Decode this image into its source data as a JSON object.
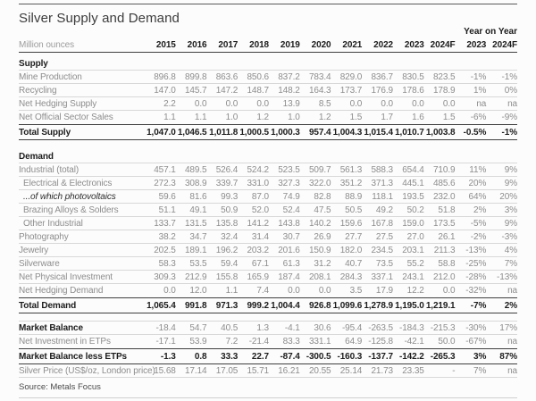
{
  "page": {
    "title": "Silver Supply and Demand",
    "unit_label": "Million ounces",
    "yoy_label": "Year on Year",
    "source": "Source: Metals Focus"
  },
  "table": {
    "year_columns": [
      "2015",
      "2016",
      "2017",
      "2018",
      "2019",
      "2020",
      "2021",
      "2022",
      "2023",
      "2024F"
    ],
    "yoy_columns": [
      "2023",
      "2024F"
    ],
    "rows": [
      {
        "style": "section",
        "label": "Supply",
        "values": []
      },
      {
        "style": "regular",
        "label": "Mine Production",
        "values": [
          "896.8",
          "899.8",
          "863.6",
          "850.6",
          "837.2",
          "783.4",
          "829.0",
          "836.7",
          "830.5",
          "823.5",
          "-1%",
          "-1%"
        ]
      },
      {
        "style": "regular",
        "label": "Recycling",
        "values": [
          "147.0",
          "145.7",
          "147.2",
          "148.7",
          "148.2",
          "164.3",
          "173.7",
          "176.9",
          "178.6",
          "178.9",
          "1%",
          "0%"
        ]
      },
      {
        "style": "regular",
        "label": "Net Hedging Supply",
        "values": [
          "2.2",
          "0.0",
          "0.0",
          "0.0",
          "13.9",
          "8.5",
          "0.0",
          "0.0",
          "0.0",
          "0.0",
          "na",
          "na"
        ]
      },
      {
        "style": "regular",
        "label": "Net Official Sector Sales",
        "values": [
          "1.1",
          "1.1",
          "1.0",
          "1.2",
          "1.0",
          "1.2",
          "1.5",
          "1.7",
          "1.6",
          "1.5",
          "-6%",
          "-9%"
        ]
      },
      {
        "style": "total",
        "label": "Total Supply",
        "values": [
          "1,047.0",
          "1,046.5",
          "1,011.8",
          "1,000.5",
          "1,000.3",
          "957.4",
          "1,004.3",
          "1,015.4",
          "1,010.7",
          "1,003.8",
          "-0.5%",
          "-1%"
        ]
      },
      {
        "style": "gap",
        "label": "",
        "values": []
      },
      {
        "style": "section",
        "label": "Demand",
        "values": []
      },
      {
        "style": "regular",
        "label": "Industrial (total)",
        "values": [
          "457.1",
          "489.5",
          "526.4",
          "524.2",
          "523.5",
          "509.7",
          "561.3",
          "588.3",
          "654.4",
          "710.9",
          "11%",
          "9%"
        ]
      },
      {
        "style": "sub",
        "label": "Electrical & Electronics",
        "values": [
          "272.3",
          "308.9",
          "339.7",
          "331.0",
          "327.3",
          "322.0",
          "351.2",
          "371.3",
          "445.1",
          "485.6",
          "20%",
          "9%"
        ]
      },
      {
        "style": "subitalic",
        "label": "...of which photovoltaics",
        "values": [
          "59.6",
          "81.6",
          "99.3",
          "87.0",
          "74.9",
          "82.8",
          "88.9",
          "118.1",
          "193.5",
          "232.0",
          "64%",
          "20%"
        ]
      },
      {
        "style": "sub",
        "label": "Brazing Alloys & Solders",
        "values": [
          "51.1",
          "49.1",
          "50.9",
          "52.0",
          "52.4",
          "47.5",
          "50.5",
          "49.2",
          "50.2",
          "51.8",
          "2%",
          "3%"
        ]
      },
      {
        "style": "sub",
        "label": "Other Industrial",
        "values": [
          "133.7",
          "131.5",
          "135.8",
          "141.2",
          "143.8",
          "140.2",
          "159.6",
          "167.8",
          "159.0",
          "173.5",
          "-5%",
          "9%"
        ]
      },
      {
        "style": "regular",
        "label": "Photography",
        "values": [
          "38.2",
          "34.7",
          "32.4",
          "31.4",
          "30.7",
          "26.9",
          "27.7",
          "27.5",
          "27.0",
          "26.1",
          "-2%",
          "-3%"
        ]
      },
      {
        "style": "regular",
        "label": "Jewelry",
        "values": [
          "202.5",
          "189.1",
          "196.2",
          "203.2",
          "201.6",
          "150.9",
          "182.0",
          "234.5",
          "203.1",
          "211.3",
          "-13%",
          "4%"
        ]
      },
      {
        "style": "regular",
        "label": "Silverware",
        "values": [
          "58.3",
          "53.5",
          "59.4",
          "67.1",
          "61.3",
          "31.2",
          "40.7",
          "73.5",
          "55.2",
          "58.8",
          "-25%",
          "7%"
        ]
      },
      {
        "style": "regular",
        "label": "Net Physical Investment",
        "values": [
          "309.3",
          "212.9",
          "155.8",
          "165.9",
          "187.4",
          "208.1",
          "284.3",
          "337.1",
          "243.1",
          "212.0",
          "-28%",
          "-13%"
        ]
      },
      {
        "style": "regular",
        "label": "Net Hedging Demand",
        "values": [
          "0.0",
          "12.0",
          "1.1",
          "7.4",
          "0.0",
          "0.0",
          "3.5",
          "17.9",
          "12.2",
          "0.0",
          "-32%",
          "na"
        ]
      },
      {
        "style": "total",
        "label": "Total Demand",
        "values": [
          "1,065.4",
          "991.8",
          "971.3",
          "999.2",
          "1,004.4",
          "926.8",
          "1,099.6",
          "1,278.9",
          "1,195.0",
          "1,219.1",
          "-7%",
          "2%"
        ]
      },
      {
        "style": "gap-lg",
        "label": "",
        "values": []
      },
      {
        "style": "boldlabel",
        "label": "Market Balance",
        "values": [
          "-18.4",
          "54.7",
          "40.5",
          "1.3",
          "-4.1",
          "30.6",
          "-95.4",
          "-263.5",
          "-184.3",
          "-215.3",
          "-30%",
          "17%"
        ]
      },
      {
        "style": "regular",
        "label": "Net Investment in ETPs",
        "values": [
          "-17.1",
          "53.9",
          "7.2",
          "-21.4",
          "83.3",
          "331.1",
          "64.9",
          "-125.8",
          "-42.1",
          "50.0",
          "-67%",
          "na"
        ]
      },
      {
        "style": "total",
        "label": "Market Balance less ETPs",
        "values": [
          "-1.3",
          "0.8",
          "33.3",
          "22.7",
          "-87.4",
          "-300.5",
          "-160.3",
          "-137.7",
          "-142.2",
          "-265.3",
          "3%",
          "87%"
        ]
      },
      {
        "style": "regular",
        "label": "Silver Price (US$/oz, London price)",
        "values": [
          "15.68",
          "17.14",
          "17.05",
          "15.71",
          "16.21",
          "20.55",
          "25.14",
          "21.73",
          "23.35",
          "-",
          "7%",
          "na"
        ]
      }
    ]
  }
}
